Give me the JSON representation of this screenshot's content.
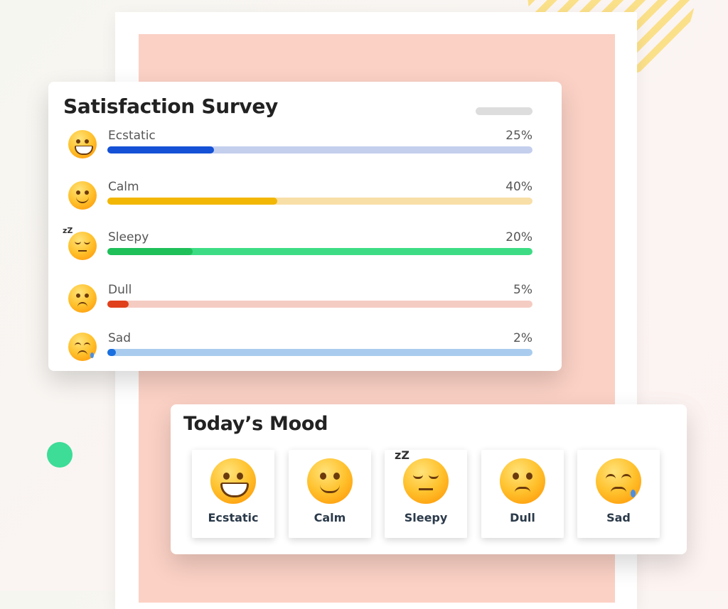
{
  "survey": {
    "title": "Satisfaction Survey",
    "rows": [
      {
        "label": "Ecstatic",
        "percent_text": "25%",
        "percent": 25,
        "fill": "#1451d6",
        "track": "#c4cfee",
        "icon": "grinning-face-icon"
      },
      {
        "label": "Calm",
        "percent_text": "40%",
        "percent": 40,
        "fill": "#f2b705",
        "track": "#f8dfa7",
        "icon": "smiling-face-icon"
      },
      {
        "label": "Sleepy",
        "percent_text": "20%",
        "percent": 20,
        "fill": "#1fbf5a",
        "track": "#3ddc84",
        "icon": "sleepy-face-icon"
      },
      {
        "label": "Dull",
        "percent_text": "5%",
        "percent": 5,
        "fill": "#e0401c",
        "track": "#f5ccc2",
        "icon": "neutral-face-icon"
      },
      {
        "label": "Sad",
        "percent_text": "2%",
        "percent": 2,
        "fill": "#1a6fe0",
        "track": "#a9ccee",
        "icon": "sad-face-icon"
      }
    ]
  },
  "mood": {
    "title": "Today’s Mood",
    "options": [
      {
        "label": "Ecstatic",
        "icon": "grinning-face-icon"
      },
      {
        "label": "Calm",
        "icon": "smiling-face-icon"
      },
      {
        "label": "Sleepy",
        "icon": "sleepy-face-icon"
      },
      {
        "label": "Dull",
        "icon": "neutral-face-icon"
      },
      {
        "label": "Sad",
        "icon": "sad-face-icon"
      }
    ]
  },
  "colors": {
    "panel": "#fbd1c5",
    "accent_green": "#3ddc97",
    "stripes": "#fbe08a"
  }
}
